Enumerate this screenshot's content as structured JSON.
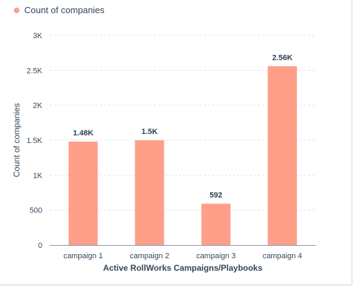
{
  "chart_data": {
    "type": "bar",
    "legend": [
      "Count of companies"
    ],
    "legend_position": "top-left",
    "categories": [
      "campaign 1",
      "campaign 2",
      "campaign 3",
      "campaign 4"
    ],
    "series": [
      {
        "name": "Count of companies",
        "values": [
          1480,
          1500,
          592,
          2560
        ],
        "data_labels": [
          "1.48K",
          "1.5K",
          "592",
          "2.56K"
        ]
      }
    ],
    "xlabel": "Active RollWorks Campaigns/Playbooks",
    "ylabel": "Count of companies",
    "ylim": [
      0,
      3000
    ],
    "y_ticks": [
      0,
      500,
      1000,
      1500,
      2000,
      2500,
      3000
    ],
    "y_tick_labels": [
      "0",
      "500",
      "1K",
      "1.5K",
      "2K",
      "2.5K",
      "3K"
    ],
    "grid": true,
    "bar_color": "#ff9f8a"
  }
}
